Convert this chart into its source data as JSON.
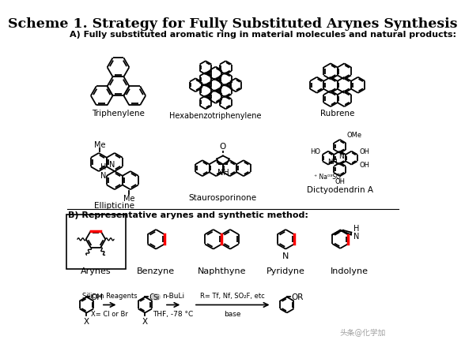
{
  "title": "Scheme 1. Strategy for Fully Substituted Arynes Synthesis",
  "subtitle_A": "A) Fully substituted aromatic ring in material molecules and natural products:",
  "subtitle_B": "B) Representative arynes and synthetic method:",
  "background_color": "#ffffff",
  "label_triphenylene": "Triphenylene",
  "label_hexabenzo": "Hexabenzotriphenylene",
  "label_rubrene": "Rubrene",
  "label_ellipticine": "Ellipticine",
  "label_staurosporinone": "Staurosporinone",
  "label_dictyodendrin": "Dictyodendrin A",
  "label_arynes": "Arynes",
  "label_benzyne": "Benzyne",
  "label_naphthyne": "Naphthyne",
  "label_pyridyne": "Pyridyne",
  "label_indolyne": "Indolyne",
  "arrow1_top": "Silicon Reagents",
  "arrow1_bot": "X= Cl or Br",
  "arrow2_top": "n-BuLi",
  "arrow2_bot": "THF, -78 °C",
  "arrow3_top": "R= Tf, Nf, SO₂F, etc",
  "arrow3_bot": "base",
  "watermark": "头条@化学加"
}
